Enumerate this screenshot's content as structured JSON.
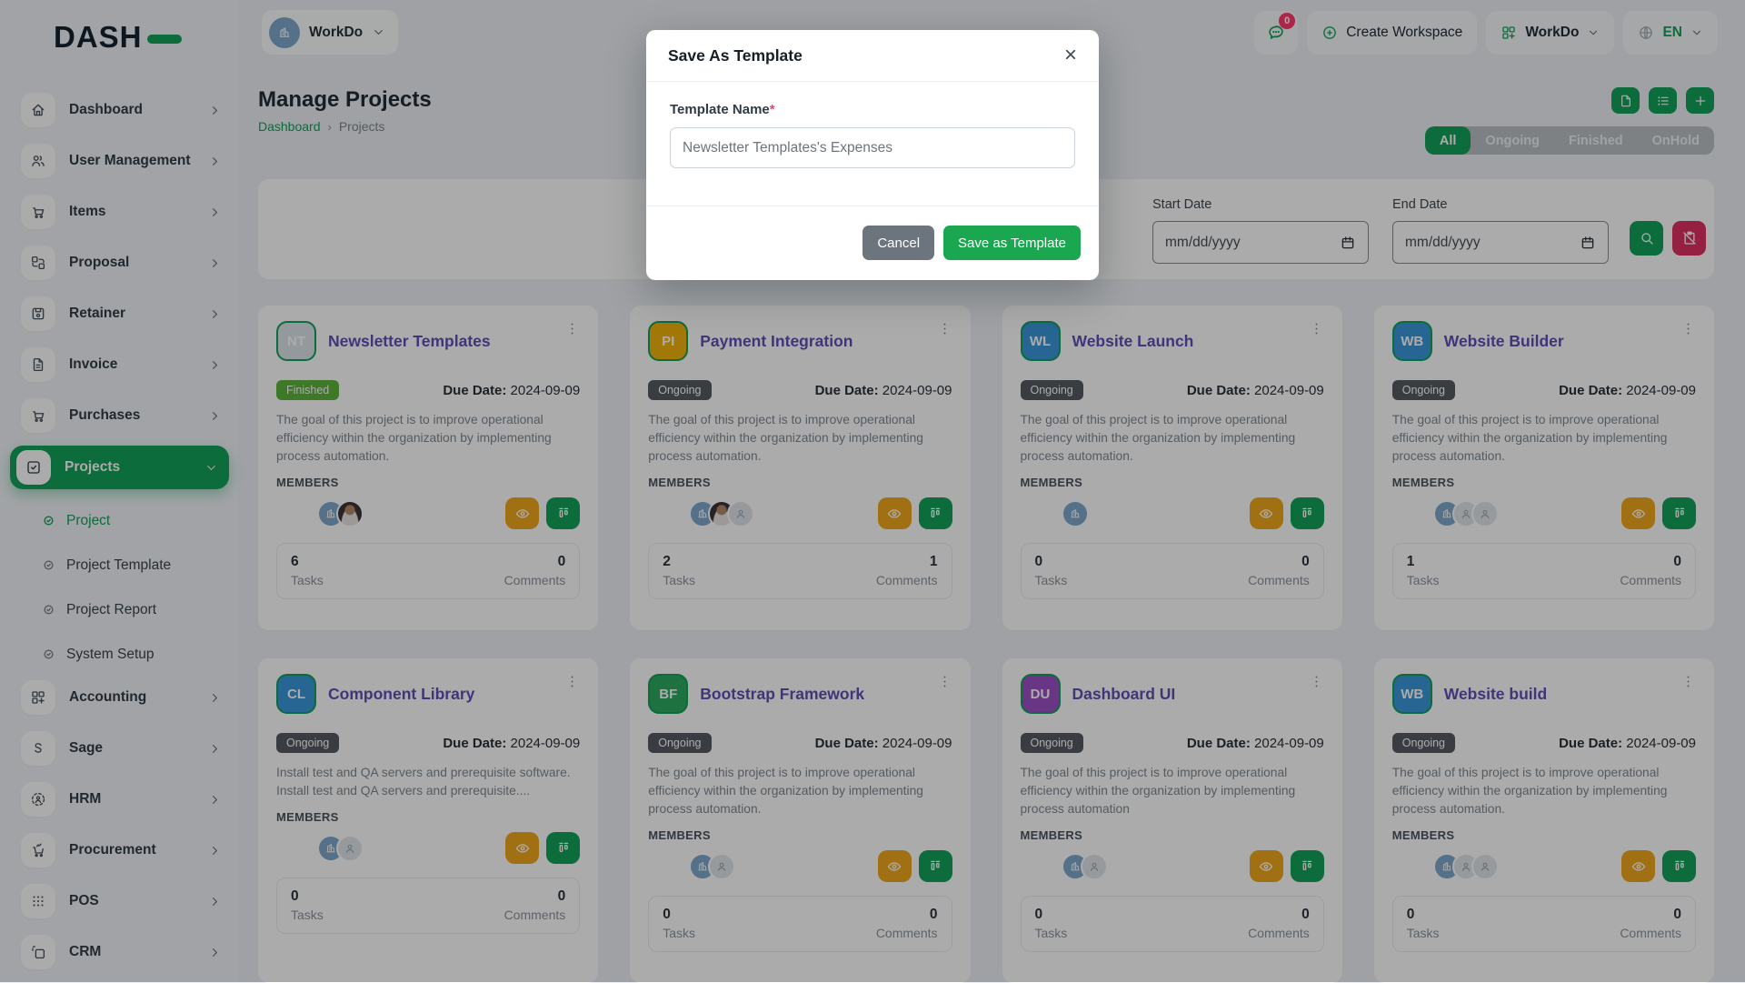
{
  "colors": {
    "green": "#12a15a",
    "amber": "#f0a81c",
    "danger": "#e03063",
    "title": "#5e50b5",
    "badge-finished": "#5cb53a",
    "badge-ongoing": "#565c63"
  },
  "brand": {
    "logo": "DASH"
  },
  "topbar": {
    "workspace": "WorkDo",
    "chat_badge": "0",
    "create_workspace": "Create Workspace",
    "app_menu": "WorkDo",
    "language": "EN"
  },
  "sidebar": {
    "top": [
      {
        "label": "Dashboard",
        "icon": "i-home"
      },
      {
        "label": "User Management",
        "icon": "i-users"
      },
      {
        "label": "Items",
        "icon": "i-cart"
      },
      {
        "label": "Proposal",
        "icon": "i-swap"
      },
      {
        "label": "Retainer",
        "icon": "i-floppy"
      },
      {
        "label": "Invoice",
        "icon": "i-invoice"
      },
      {
        "label": "Purchases",
        "icon": "i-cart"
      }
    ],
    "projects": {
      "label": "Projects",
      "icon": "i-check-sq"
    },
    "children": [
      {
        "label": "Project",
        "state": "active"
      },
      {
        "label": "Project Template"
      },
      {
        "label": "Project Report"
      },
      {
        "label": "System Setup"
      }
    ],
    "bottom": [
      {
        "label": "Accounting",
        "icon": "i-grid-add"
      },
      {
        "label": "Sage",
        "icon": "i-s"
      },
      {
        "label": "HRM",
        "icon": "i-focus"
      },
      {
        "label": "Procurement",
        "icon": "i-cart2"
      },
      {
        "label": "POS",
        "icon": "i-dots9"
      },
      {
        "label": "CRM",
        "icon": "i-sq-dash"
      }
    ]
  },
  "page": {
    "title": "Manage Projects",
    "breadcrumb_home": "Dashboard",
    "breadcrumb_sep": "›",
    "breadcrumb_current": "Projects"
  },
  "tabs": [
    {
      "label": "All",
      "state": "active"
    },
    {
      "label": "Ongoing"
    },
    {
      "label": "Finished"
    },
    {
      "label": "OnHold"
    }
  ],
  "filters": {
    "start_label": "Start Date",
    "end_label": "End Date",
    "date_placeholder": "mm/dd/yyyy"
  },
  "labels": {
    "due": "Due Date:",
    "members": "MEMBERS",
    "tasks": "Tasks",
    "comments": "Comments"
  },
  "cards": [
    {
      "initials": "NT",
      "avatar": "av-gray",
      "title": "Newsletter Templates",
      "status": "Finished",
      "status_type": "finished",
      "due": "2024-09-09",
      "desc": "The goal of this project is to improve operational efficiency within the organization by implementing process automation.",
      "members": [
        "logo",
        "photo"
      ],
      "tasks": "6",
      "comments": "0"
    },
    {
      "initials": "PI",
      "avatar": "av-amber",
      "title": "Payment Integration",
      "status": "Ongoing",
      "status_type": "ongoing",
      "due": "2024-09-09",
      "desc": "The goal of this project is to improve operational efficiency within the organization by implementing process automation.",
      "members": [
        "logo",
        "photo",
        "ph"
      ],
      "tasks": "2",
      "comments": "1"
    },
    {
      "initials": "WL",
      "avatar": "av-blue",
      "title": "Website Launch",
      "status": "Ongoing",
      "status_type": "ongoing",
      "due": "2024-09-09",
      "desc": "The goal of this project is to improve operational efficiency within the organization by implementing process automation.",
      "members": [
        "logo"
      ],
      "tasks": "0",
      "comments": "0"
    },
    {
      "initials": "WB",
      "avatar": "av-blue",
      "title": "Website Builder",
      "status": "Ongoing",
      "status_type": "ongoing",
      "due": "2024-09-09",
      "desc": "The goal of this project is to improve operational efficiency within the organization by implementing process automation.",
      "members": [
        "logo",
        "ph",
        "ph"
      ],
      "tasks": "1",
      "comments": "0"
    },
    {
      "initials": "CL",
      "avatar": "av-blue",
      "title": "Component Library",
      "status": "Ongoing",
      "status_type": "ongoing",
      "due": "2024-09-09",
      "desc": "Install test and QA servers and prerequisite software. Install test and QA servers and prerequisite....",
      "members": [
        "logo",
        "ph"
      ],
      "tasks": "0",
      "comments": "0"
    },
    {
      "initials": "BF",
      "avatar": "av-green",
      "title": "Bootstrap Framework",
      "status": "Ongoing",
      "status_type": "ongoing",
      "due": "2024-09-09",
      "desc": "The goal of this project is to improve operational efficiency within the organization by implementing process automation.",
      "members": [
        "logo",
        "ph"
      ],
      "tasks": "0",
      "comments": "0"
    },
    {
      "initials": "DU",
      "avatar": "av-purple",
      "title": "Dashboard UI",
      "status": "Ongoing",
      "status_type": "ongoing",
      "due": "2024-09-09",
      "desc": "The goal of this project is to improve operational efficiency within the organization by implementing process automation",
      "members": [
        "logo",
        "ph"
      ],
      "tasks": "0",
      "comments": "0"
    },
    {
      "initials": "WB",
      "avatar": "av-blue",
      "title": "Website build",
      "status": "Ongoing",
      "status_type": "ongoing",
      "due": "2024-09-09",
      "desc": "The goal of this project is to improve operational efficiency within the organization by implementing process automation.",
      "members": [
        "logo",
        "ph",
        "ph"
      ],
      "tasks": "0",
      "comments": "0"
    }
  ],
  "modal": {
    "title": "Save As Template",
    "close": "×",
    "field_label": "Template Name",
    "required": "*",
    "field_value": "Newsletter Templates's Expenses",
    "cancel": "Cancel",
    "submit": "Save as Template"
  }
}
